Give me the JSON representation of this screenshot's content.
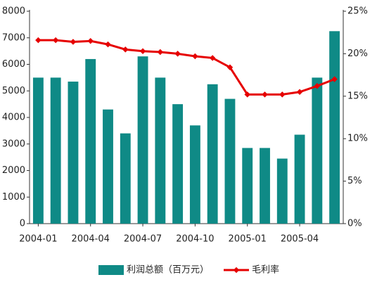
{
  "chart_data": {
    "type": "bar-line",
    "categories": [
      "2004-01",
      null,
      null,
      "2004-04",
      null,
      null,
      "2004-07",
      null,
      null,
      "2004-10",
      null,
      null,
      "2005-01",
      null,
      null,
      "2005-04",
      null,
      null
    ],
    "series": [
      {
        "name": "利润总额（百万元）",
        "type": "bar",
        "color": "#0f8a86",
        "values": [
          5500,
          5500,
          5350,
          6200,
          4300,
          3400,
          6300,
          5500,
          4500,
          3700,
          5250,
          4700,
          2850,
          2850,
          2450,
          3350,
          5500,
          7250
        ]
      },
      {
        "name": "毛利率",
        "type": "line",
        "axis": "y2",
        "color": "#e60000",
        "values": [
          21.6,
          21.6,
          21.4,
          21.5,
          21.1,
          20.5,
          20.3,
          20.2,
          20.0,
          19.7,
          19.5,
          18.4,
          15.2,
          15.2,
          15.2,
          15.5,
          16.2,
          17.0
        ]
      }
    ],
    "ylim": [
      0,
      8000
    ],
    "yticks": [
      0,
      1000,
      2000,
      3000,
      4000,
      5000,
      6000,
      7000,
      8000
    ],
    "y2lim": [
      0,
      25
    ],
    "y2ticks": [
      {
        "value": 0,
        "label": "0%"
      },
      {
        "value": 5,
        "label": "5%"
      },
      {
        "value": 10,
        "label": "10%"
      },
      {
        "value": 15,
        "label": "15%"
      },
      {
        "value": 20,
        "label": "20%"
      },
      {
        "value": 25,
        "label": "25%"
      }
    ],
    "grid": false
  }
}
